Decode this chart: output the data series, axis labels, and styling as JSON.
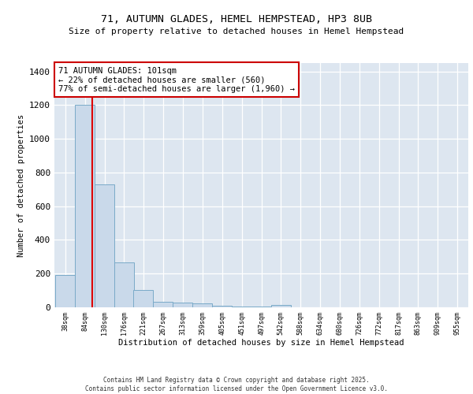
{
  "title1": "71, AUTUMN GLADES, HEMEL HEMPSTEAD, HP3 8UB",
  "title2": "Size of property relative to detached houses in Hemel Hempstead",
  "xlabel": "Distribution of detached houses by size in Hemel Hempstead",
  "ylabel": "Number of detached properties",
  "bin_labels": [
    "38sqm",
    "84sqm",
    "130sqm",
    "176sqm",
    "221sqm",
    "267sqm",
    "313sqm",
    "359sqm",
    "405sqm",
    "451sqm",
    "497sqm",
    "542sqm",
    "588sqm",
    "634sqm",
    "680sqm",
    "726sqm",
    "772sqm",
    "817sqm",
    "863sqm",
    "909sqm",
    "955sqm"
  ],
  "bin_edges": [
    38,
    84,
    130,
    176,
    221,
    267,
    313,
    359,
    405,
    451,
    497,
    542,
    588,
    634,
    680,
    726,
    772,
    817,
    863,
    909,
    955
  ],
  "bar_heights": [
    190,
    1200,
    730,
    268,
    105,
    35,
    27,
    22,
    10,
    5,
    3,
    15,
    2,
    2,
    2,
    2,
    2,
    2,
    2,
    2,
    2
  ],
  "bar_color": "#c9d9ea",
  "bar_edgecolor": "#7aaac8",
  "red_line_x": 101,
  "annotation_line1": "71 AUTUMN GLADES: 101sqm",
  "annotation_line2": "← 22% of detached houses are smaller (560)",
  "annotation_line3": "77% of semi-detached houses are larger (1,960) →",
  "annotation_box_color": "#ffffff",
  "annotation_box_edgecolor": "#cc0000",
  "background_color": "#dde6f0",
  "grid_color": "#ffffff",
  "ylim": [
    0,
    1450
  ],
  "yticks": [
    0,
    200,
    400,
    600,
    800,
    1000,
    1200,
    1400
  ],
  "footer1": "Contains HM Land Registry data © Crown copyright and database right 2025.",
  "footer2": "Contains public sector information licensed under the Open Government Licence v3.0."
}
